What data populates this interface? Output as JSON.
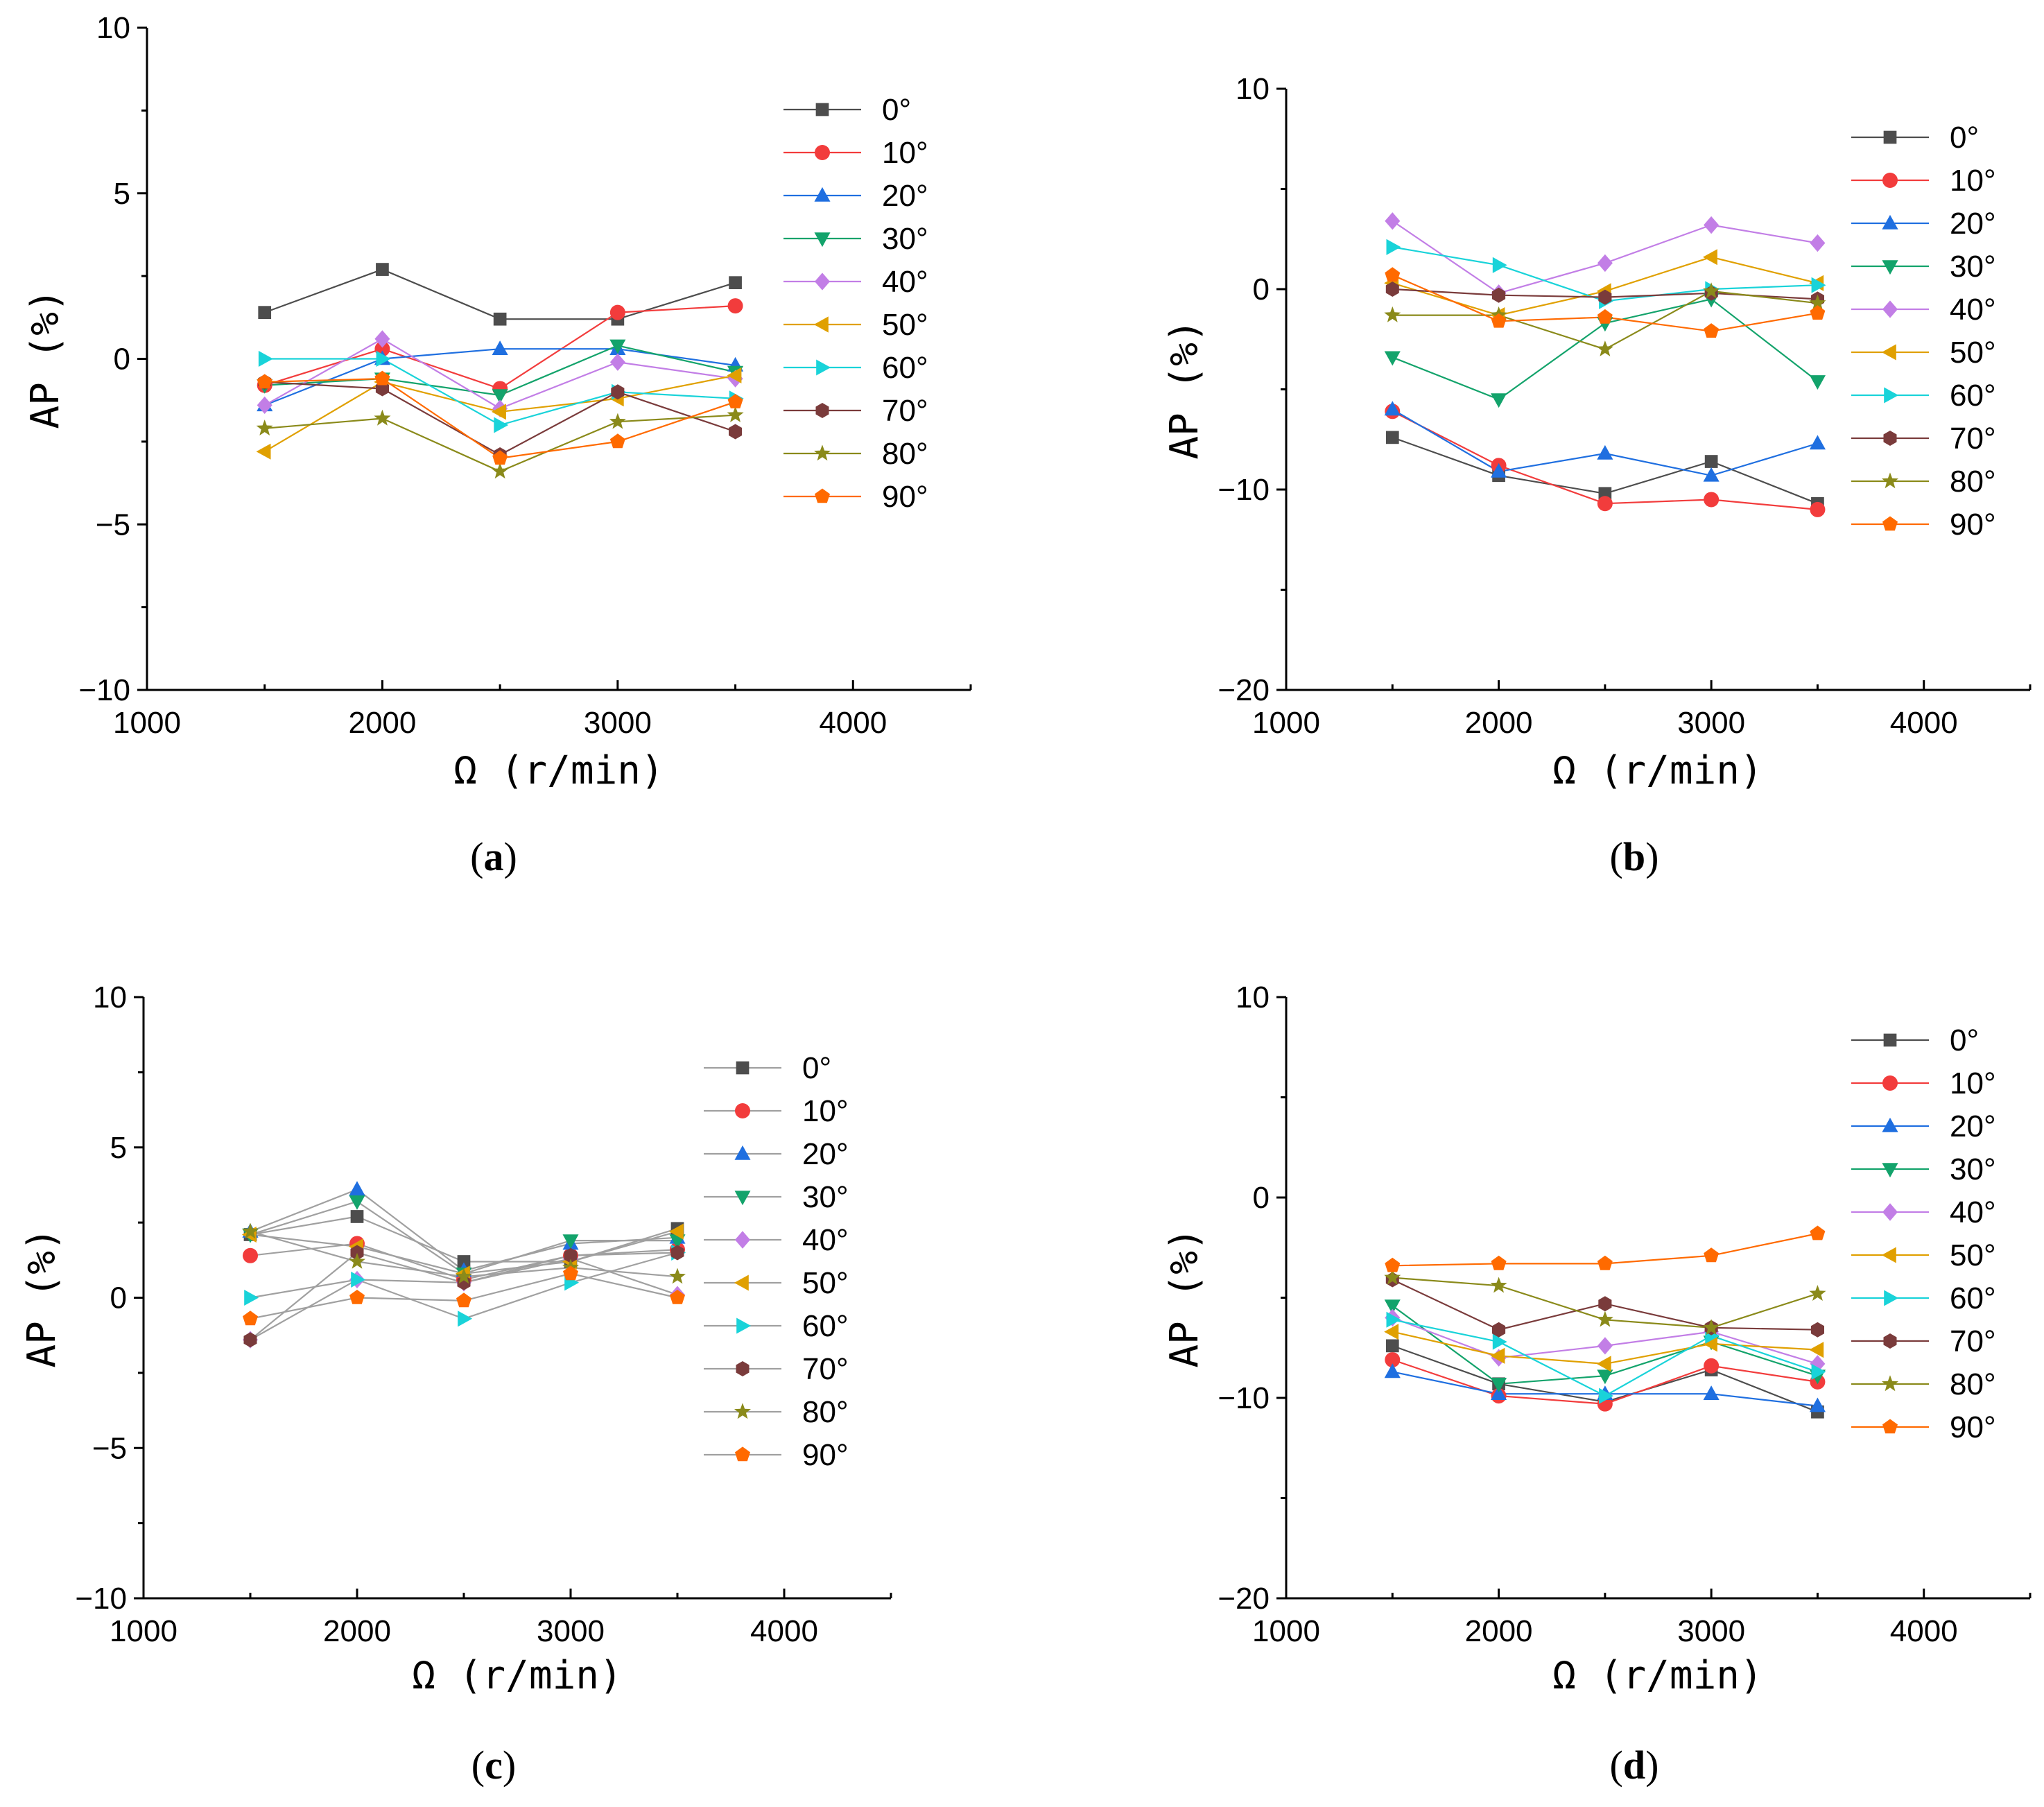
{
  "figure": {
    "colors": {
      "0°": "#4d4d4d",
      "10°": "#f23c3c",
      "20°": "#1f6fe0",
      "30°": "#13a36b",
      "40°": "#c27ee6",
      "50°": "#e0a000",
      "60°": "#19d3d9",
      "70°": "#7a3b3b",
      "80°": "#8a8a1a",
      "90°": "#ff6a00"
    },
    "markers": {
      "0°": "square",
      "10°": "circle",
      "20°": "triangle-up",
      "30°": "triangle-down",
      "40°": "diamond",
      "50°": "triangle-left",
      "60°": "triangle-right",
      "70°": "hexagon",
      "80°": "star",
      "90°": "pentagon"
    }
  },
  "chart_data": [
    {
      "panel": "a",
      "type": "line",
      "xlabel": "Ω (r/min)",
      "ylabel": "AP (%)",
      "xlim": [
        1000,
        4500
      ],
      "ylim": [
        -10,
        10
      ],
      "xticks": [
        1000,
        2000,
        3000,
        4000
      ],
      "yticks": [
        -10,
        -5,
        0,
        5,
        10
      ],
      "legend_position": "top-right",
      "line_style": "colored",
      "x": [
        1500,
        2000,
        2500,
        3000,
        3500
      ],
      "series": [
        {
          "name": "0°",
          "values": [
            1.4,
            2.7,
            1.2,
            1.2,
            2.3
          ]
        },
        {
          "name": "10°",
          "values": [
            -0.8,
            0.3,
            -0.9,
            1.4,
            1.6
          ]
        },
        {
          "name": "20°",
          "values": [
            -1.4,
            0.0,
            0.3,
            0.3,
            -0.2
          ]
        },
        {
          "name": "30°",
          "values": [
            -0.8,
            -0.6,
            -1.1,
            0.4,
            -0.4
          ]
        },
        {
          "name": "40°",
          "values": [
            -1.4,
            0.6,
            -1.5,
            -0.1,
            -0.6
          ]
        },
        {
          "name": "50°",
          "values": [
            -2.8,
            -0.7,
            -1.6,
            -1.2,
            -0.5
          ]
        },
        {
          "name": "60°",
          "values": [
            0.0,
            0.0,
            -2.0,
            -1.0,
            -1.2
          ]
        },
        {
          "name": "70°",
          "values": [
            -0.7,
            -0.9,
            -2.9,
            -1.0,
            -2.2
          ]
        },
        {
          "name": "80°",
          "values": [
            -2.1,
            -1.8,
            -3.4,
            -1.9,
            -1.7
          ]
        },
        {
          "name": "90°",
          "values": [
            -0.7,
            -0.6,
            -3.0,
            -2.5,
            -1.3
          ]
        }
      ]
    },
    {
      "panel": "b",
      "type": "line",
      "xlabel": "Ω (r/min)",
      "ylabel": "AP (%)",
      "xlim": [
        1000,
        4500
      ],
      "ylim": [
        -20,
        10
      ],
      "xticks": [
        1000,
        2000,
        3000,
        4000
      ],
      "yticks": [
        -20,
        -10,
        0,
        10
      ],
      "legend_position": "top-right",
      "line_style": "colored",
      "x": [
        1500,
        2000,
        2500,
        3000,
        3500
      ],
      "series": [
        {
          "name": "0°",
          "values": [
            -7.4,
            -9.3,
            -10.2,
            -8.6,
            -10.7
          ]
        },
        {
          "name": "10°",
          "values": [
            -6.1,
            -8.8,
            -10.7,
            -10.5,
            -11.0
          ]
        },
        {
          "name": "20°",
          "values": [
            -6.0,
            -9.1,
            -8.2,
            -9.3,
            -7.7
          ]
        },
        {
          "name": "30°",
          "values": [
            -3.4,
            -5.5,
            -1.7,
            -0.5,
            -4.6
          ]
        },
        {
          "name": "40°",
          "values": [
            3.4,
            -0.2,
            1.3,
            3.2,
            2.3
          ]
        },
        {
          "name": "50°",
          "values": [
            0.3,
            -1.3,
            -0.1,
            1.6,
            0.3
          ]
        },
        {
          "name": "60°",
          "values": [
            2.1,
            1.2,
            -0.6,
            0.0,
            0.2
          ]
        },
        {
          "name": "70°",
          "values": [
            0.0,
            -0.3,
            -0.4,
            -0.2,
            -0.5
          ]
        },
        {
          "name": "80°",
          "values": [
            -1.3,
            -1.3,
            -3.0,
            -0.1,
            -0.7
          ]
        },
        {
          "name": "90°",
          "values": [
            0.7,
            -1.6,
            -1.4,
            -2.1,
            -1.2
          ]
        }
      ]
    },
    {
      "panel": "c",
      "type": "line",
      "xlabel": "Ω (r/min)",
      "ylabel": "AP (%)",
      "xlim": [
        1000,
        4500
      ],
      "ylim": [
        -10,
        10
      ],
      "xticks": [
        1000,
        2000,
        3000,
        4000
      ],
      "yticks": [
        -10,
        -5,
        0,
        5,
        10
      ],
      "legend_position": "top-right",
      "line_style": "gray",
      "x": [
        1500,
        2000,
        2500,
        3000,
        3500
      ],
      "series": [
        {
          "name": "0°",
          "values": [
            2.1,
            2.7,
            1.2,
            1.2,
            2.3
          ]
        },
        {
          "name": "10°",
          "values": [
            1.4,
            1.8,
            0.6,
            1.4,
            1.6
          ]
        },
        {
          "name": "20°",
          "values": [
            2.2,
            3.6,
            0.9,
            1.8,
            2.0
          ]
        },
        {
          "name": "30°",
          "values": [
            2.1,
            3.2,
            0.8,
            1.9,
            1.9
          ]
        },
        {
          "name": "40°",
          "values": [
            -1.4,
            0.6,
            0.5,
            1.3,
            0.1
          ]
        },
        {
          "name": "50°",
          "values": [
            2.1,
            1.7,
            0.8,
            1.2,
            2.2
          ]
        },
        {
          "name": "60°",
          "values": [
            0.0,
            0.6,
            -0.7,
            0.5,
            1.5
          ]
        },
        {
          "name": "70°",
          "values": [
            -1.4,
            1.5,
            0.5,
            1.4,
            1.5
          ]
        },
        {
          "name": "80°",
          "values": [
            2.2,
            1.2,
            0.7,
            1.0,
            0.7
          ]
        },
        {
          "name": "90°",
          "values": [
            -0.7,
            0.0,
            -0.1,
            0.8,
            0.0
          ]
        }
      ]
    },
    {
      "panel": "d",
      "type": "line",
      "xlabel": "Ω (r/min)",
      "ylabel": "AP (%)",
      "xlim": [
        1000,
        4500
      ],
      "ylim": [
        -20,
        10
      ],
      "xticks": [
        1000,
        2000,
        3000,
        4000
      ],
      "yticks": [
        -20,
        -10,
        0,
        10
      ],
      "legend_position": "top-right",
      "line_style": "colored",
      "x": [
        1500,
        2000,
        2500,
        3000,
        3500
      ],
      "series": [
        {
          "name": "0°",
          "values": [
            -7.4,
            -9.3,
            -10.2,
            -8.6,
            -10.7
          ]
        },
        {
          "name": "10°",
          "values": [
            -8.1,
            -9.9,
            -10.3,
            -8.4,
            -9.2
          ]
        },
        {
          "name": "20°",
          "values": [
            -8.7,
            -9.8,
            -9.8,
            -9.8,
            -10.4
          ]
        },
        {
          "name": "30°",
          "values": [
            -5.4,
            -9.3,
            -8.9,
            -7.2,
            -8.9
          ]
        },
        {
          "name": "40°",
          "values": [
            -6.0,
            -8.0,
            -7.4,
            -6.7,
            -8.3
          ]
        },
        {
          "name": "50°",
          "values": [
            -6.7,
            -7.9,
            -8.3,
            -7.3,
            -7.6
          ]
        },
        {
          "name": "60°",
          "values": [
            -6.1,
            -7.2,
            -9.9,
            -6.9,
            -8.7
          ]
        },
        {
          "name": "70°",
          "values": [
            -4.1,
            -6.6,
            -5.3,
            -6.5,
            -6.6
          ]
        },
        {
          "name": "80°",
          "values": [
            -4.0,
            -4.4,
            -6.1,
            -6.5,
            -4.8
          ]
        },
        {
          "name": "90°",
          "values": [
            -3.4,
            -3.3,
            -3.3,
            -2.9,
            -1.8
          ]
        }
      ]
    }
  ]
}
